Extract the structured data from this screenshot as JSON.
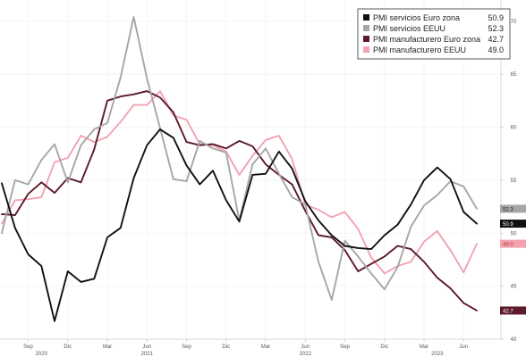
{
  "chart_data": {
    "type": "line",
    "x_start": "2020-07",
    "x": [
      "2020-07",
      "2020-08",
      "2020-09",
      "2020-10",
      "2020-11",
      "2020-12",
      "2021-01",
      "2021-02",
      "2021-03",
      "2021-04",
      "2021-05",
      "2021-06",
      "2021-07",
      "2021-08",
      "2021-09",
      "2021-10",
      "2021-11",
      "2021-12",
      "2022-01",
      "2022-02",
      "2022-03",
      "2022-04",
      "2022-05",
      "2022-06",
      "2022-07",
      "2022-08",
      "2022-09",
      "2022-10",
      "2022-11",
      "2022-12",
      "2023-01",
      "2023-02",
      "2023-03",
      "2023-04",
      "2023-05",
      "2023-06",
      "2023-07"
    ],
    "ylim": [
      40,
      72
    ],
    "y_ticks": [
      40,
      45,
      50,
      55,
      60,
      65,
      70
    ],
    "x_ticks": [
      {
        "date": "2020-09",
        "label": "Sep"
      },
      {
        "date": "2020-12",
        "label": "Dic"
      },
      {
        "date": "2021-03",
        "label": "Mar"
      },
      {
        "date": "2021-06",
        "label": "Jun"
      },
      {
        "date": "2021-09",
        "label": "Sep"
      },
      {
        "date": "2021-12",
        "label": "Dic"
      },
      {
        "date": "2022-03",
        "label": "Mar"
      },
      {
        "date": "2022-06",
        "label": "Jun"
      },
      {
        "date": "2022-09",
        "label": "Sep"
      },
      {
        "date": "2022-12",
        "label": "Dic"
      },
      {
        "date": "2023-03",
        "label": "Mar"
      },
      {
        "date": "2023-06",
        "label": "Jun"
      }
    ],
    "years": [
      {
        "label": "2020",
        "date": "2020-10"
      },
      {
        "label": "2021",
        "date": "2021-06"
      },
      {
        "label": "2022",
        "date": "2022-06"
      },
      {
        "label": "2023",
        "date": "2023-04"
      }
    ],
    "grid": true,
    "legend_position": "top-right",
    "series": [
      {
        "name": "PMI servicios Euro zona",
        "color": "#111111",
        "end_label": "50.9",
        "display_value": "50.9",
        "values": [
          54.7,
          50.5,
          48.0,
          46.9,
          41.7,
          46.4,
          45.4,
          45.7,
          49.6,
          50.5,
          55.2,
          58.3,
          59.8,
          59.0,
          56.4,
          54.6,
          55.9,
          53.1,
          51.1,
          55.5,
          55.6,
          57.7,
          56.1,
          53.0,
          51.2,
          49.8,
          48.8,
          48.6,
          48.5,
          49.8,
          50.8,
          52.7,
          55.0,
          56.2,
          55.1,
          52.0,
          50.9
        ]
      },
      {
        "name": "PMI servicios EEUU",
        "color": "#a6a6a6",
        "end_label": "52.3",
        "display_value": "52.3",
        "values": [
          50.0,
          55.0,
          54.6,
          56.9,
          58.4,
          54.8,
          58.3,
          59.8,
          60.4,
          64.7,
          70.4,
          64.6,
          59.9,
          55.1,
          54.9,
          58.7,
          58.0,
          57.6,
          51.2,
          56.5,
          58.0,
          55.6,
          53.4,
          52.7,
          47.3,
          43.7,
          49.3,
          47.8,
          46.2,
          44.7,
          46.8,
          50.6,
          52.6,
          53.6,
          54.9,
          54.4,
          52.3
        ]
      },
      {
        "name": "PMI manufacturero Euro zona",
        "color": "#5c1a2a",
        "end_label": "42.7",
        "display_value": "42.7",
        "values": [
          51.8,
          51.7,
          53.7,
          54.8,
          53.8,
          55.2,
          54.8,
          57.9,
          62.5,
          62.9,
          63.1,
          63.4,
          62.8,
          61.4,
          58.6,
          58.3,
          58.4,
          58.0,
          58.7,
          58.2,
          56.5,
          55.5,
          54.6,
          52.1,
          49.8,
          49.6,
          48.4,
          46.4,
          47.1,
          47.8,
          48.8,
          48.5,
          47.3,
          45.8,
          44.8,
          43.4,
          42.7
        ]
      },
      {
        "name": "PMI manufacturero EEUU",
        "color": "#f2a2b1",
        "end_label": "49.0",
        "display_value": "49.0",
        "values": [
          50.9,
          53.1,
          53.2,
          53.4,
          56.7,
          57.1,
          59.2,
          58.6,
          59.1,
          60.5,
          62.1,
          62.1,
          63.4,
          61.1,
          60.7,
          58.4,
          58.3,
          57.7,
          55.5,
          57.3,
          58.8,
          59.2,
          57.0,
          52.7,
          52.2,
          51.5,
          52.0,
          50.4,
          47.7,
          46.2,
          46.9,
          47.3,
          49.2,
          50.2,
          48.4,
          46.3,
          49.0
        ]
      }
    ]
  }
}
